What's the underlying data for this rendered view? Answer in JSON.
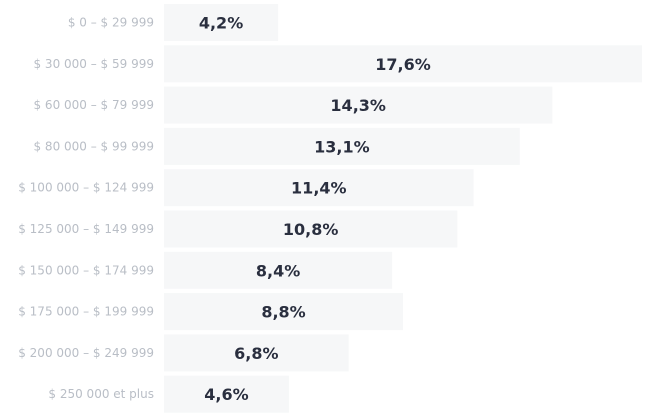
{
  "chart_data": {
    "type": "bar",
    "orientation": "horizontal",
    "categories": [
      "$ 0 – $ 29 999",
      "$ 30 000 – $ 59 999",
      "$ 60 000 – $ 79 999",
      "$ 80 000 – $ 99 999",
      "$ 100 000 – $ 124 999",
      "$ 125 000 – $ 149 999",
      "$ 150 000 – $ 174 999",
      "$ 175 000 – $ 199 999",
      "$ 200 000 – $ 249 999",
      "$ 250 000 et plus"
    ],
    "values": [
      4.2,
      17.6,
      14.3,
      13.1,
      11.4,
      10.8,
      8.4,
      8.8,
      6.8,
      4.6
    ],
    "value_labels": [
      "4,2%",
      "17,6%",
      "14,3%",
      "13,1%",
      "11,4%",
      "10,8%",
      "8,4%",
      "8,8%",
      "6,8%",
      "4,6%"
    ],
    "title": "",
    "xlabel": "",
    "ylabel": "",
    "xlim": [
      0,
      17.6
    ],
    "grid": false,
    "legend": "none",
    "colors": {
      "bar": "#f6f7f8",
      "value_text": "#2a2f3f",
      "category_text": "#b9bec6"
    }
  }
}
